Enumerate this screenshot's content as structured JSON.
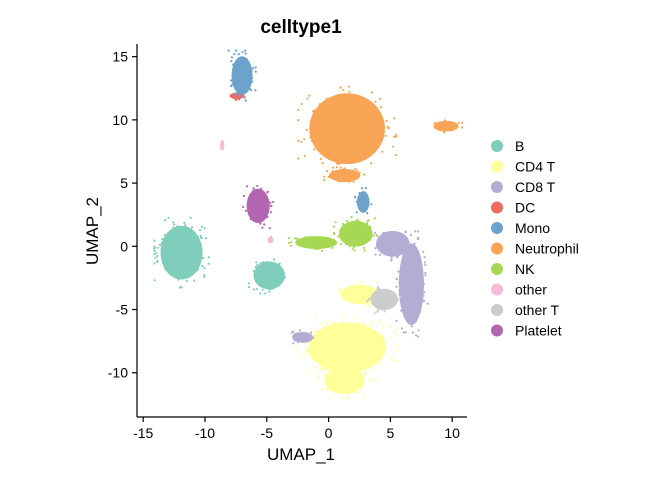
{
  "chart_data": {
    "type": "scatter",
    "title": "celltype1",
    "xlabel": "UMAP_1",
    "ylabel": "UMAP_2",
    "xlim": [
      -15.5,
      11.2
    ],
    "ylim": [
      -13.5,
      16
    ],
    "xticks": [
      -15,
      -10,
      -5,
      0,
      5,
      10
    ],
    "xtick_labels": [
      "-15",
      "-10",
      "-5",
      "0",
      "5",
      "10"
    ],
    "yticks": [
      -10,
      -5,
      0,
      5,
      10,
      15
    ],
    "ytick_labels": [
      "-10",
      "-5",
      "0",
      "5",
      "10",
      "15"
    ],
    "grid": false,
    "legend_position": "right",
    "series": [
      {
        "name": "B",
        "color": "#7FCDBB",
        "clusters": [
          {
            "cx": -11.9,
            "cy": -0.5,
            "rx": 2.0,
            "ry": 2.5,
            "n": 320
          },
          {
            "cx": -4.8,
            "cy": -2.3,
            "rx": 1.5,
            "ry": 1.3,
            "n": 140
          }
        ]
      },
      {
        "name": "CD4 T",
        "color": "#FFFF99",
        "clusters": [
          {
            "cx": 1.5,
            "cy": -8.0,
            "rx": 3.7,
            "ry": 2.3,
            "n": 360
          },
          {
            "cx": 1.3,
            "cy": -10.6,
            "rx": 1.9,
            "ry": 1.3,
            "n": 120
          },
          {
            "cx": 2.5,
            "cy": -3.8,
            "rx": 1.8,
            "ry": 0.9,
            "n": 60
          }
        ]
      },
      {
        "name": "CD8 T",
        "color": "#B3ACD3",
        "clusters": [
          {
            "cx": 6.7,
            "cy": -3.0,
            "rx": 1.2,
            "ry": 3.8,
            "n": 200
          },
          {
            "cx": 5.2,
            "cy": 0.2,
            "rx": 1.6,
            "ry": 1.2,
            "n": 90
          },
          {
            "cx": -2.1,
            "cy": -7.2,
            "rx": 1.0,
            "ry": 0.5,
            "n": 40
          }
        ]
      },
      {
        "name": "DC",
        "color": "#EF6A5E",
        "clusters": [
          {
            "cx": -7.4,
            "cy": 11.9,
            "rx": 0.7,
            "ry": 0.3,
            "n": 20
          }
        ]
      },
      {
        "name": "Mono",
        "color": "#6CA2CB",
        "clusters": [
          {
            "cx": -7.0,
            "cy": 13.5,
            "rx": 1.0,
            "ry": 1.8,
            "n": 150
          },
          {
            "cx": 2.8,
            "cy": 3.5,
            "rx": 0.6,
            "ry": 1.0,
            "n": 20
          }
        ]
      },
      {
        "name": "Neutrophil",
        "color": "#F9A556",
        "clusters": [
          {
            "cx": 1.5,
            "cy": 9.3,
            "rx": 3.6,
            "ry": 3.3,
            "n": 420
          },
          {
            "cx": 9.5,
            "cy": 9.5,
            "rx": 1.2,
            "ry": 0.5,
            "n": 40
          },
          {
            "cx": 1.3,
            "cy": 5.6,
            "rx": 1.5,
            "ry": 0.6,
            "n": 40
          }
        ]
      },
      {
        "name": "NK",
        "color": "#A6D854",
        "clusters": [
          {
            "cx": 2.2,
            "cy": 1.0,
            "rx": 1.6,
            "ry": 1.2,
            "n": 140
          },
          {
            "cx": -1.0,
            "cy": 0.3,
            "rx": 2.0,
            "ry": 0.6,
            "n": 70
          }
        ]
      },
      {
        "name": "other",
        "color": "#F8BCDB",
        "clusters": [
          {
            "cx": -8.6,
            "cy": 8.0,
            "rx": 0.2,
            "ry": 0.5,
            "n": 10
          },
          {
            "cx": -4.7,
            "cy": 0.5,
            "rx": 0.3,
            "ry": 0.3,
            "n": 6
          }
        ]
      },
      {
        "name": "other T",
        "color": "#CCCCCC",
        "clusters": [
          {
            "cx": 4.5,
            "cy": -4.2,
            "rx": 1.3,
            "ry": 1.0,
            "n": 80
          }
        ]
      },
      {
        "name": "Platelet",
        "color": "#B266B2",
        "clusters": [
          {
            "cx": -5.7,
            "cy": 3.2,
            "rx": 1.1,
            "ry": 1.6,
            "n": 80
          }
        ]
      }
    ]
  }
}
